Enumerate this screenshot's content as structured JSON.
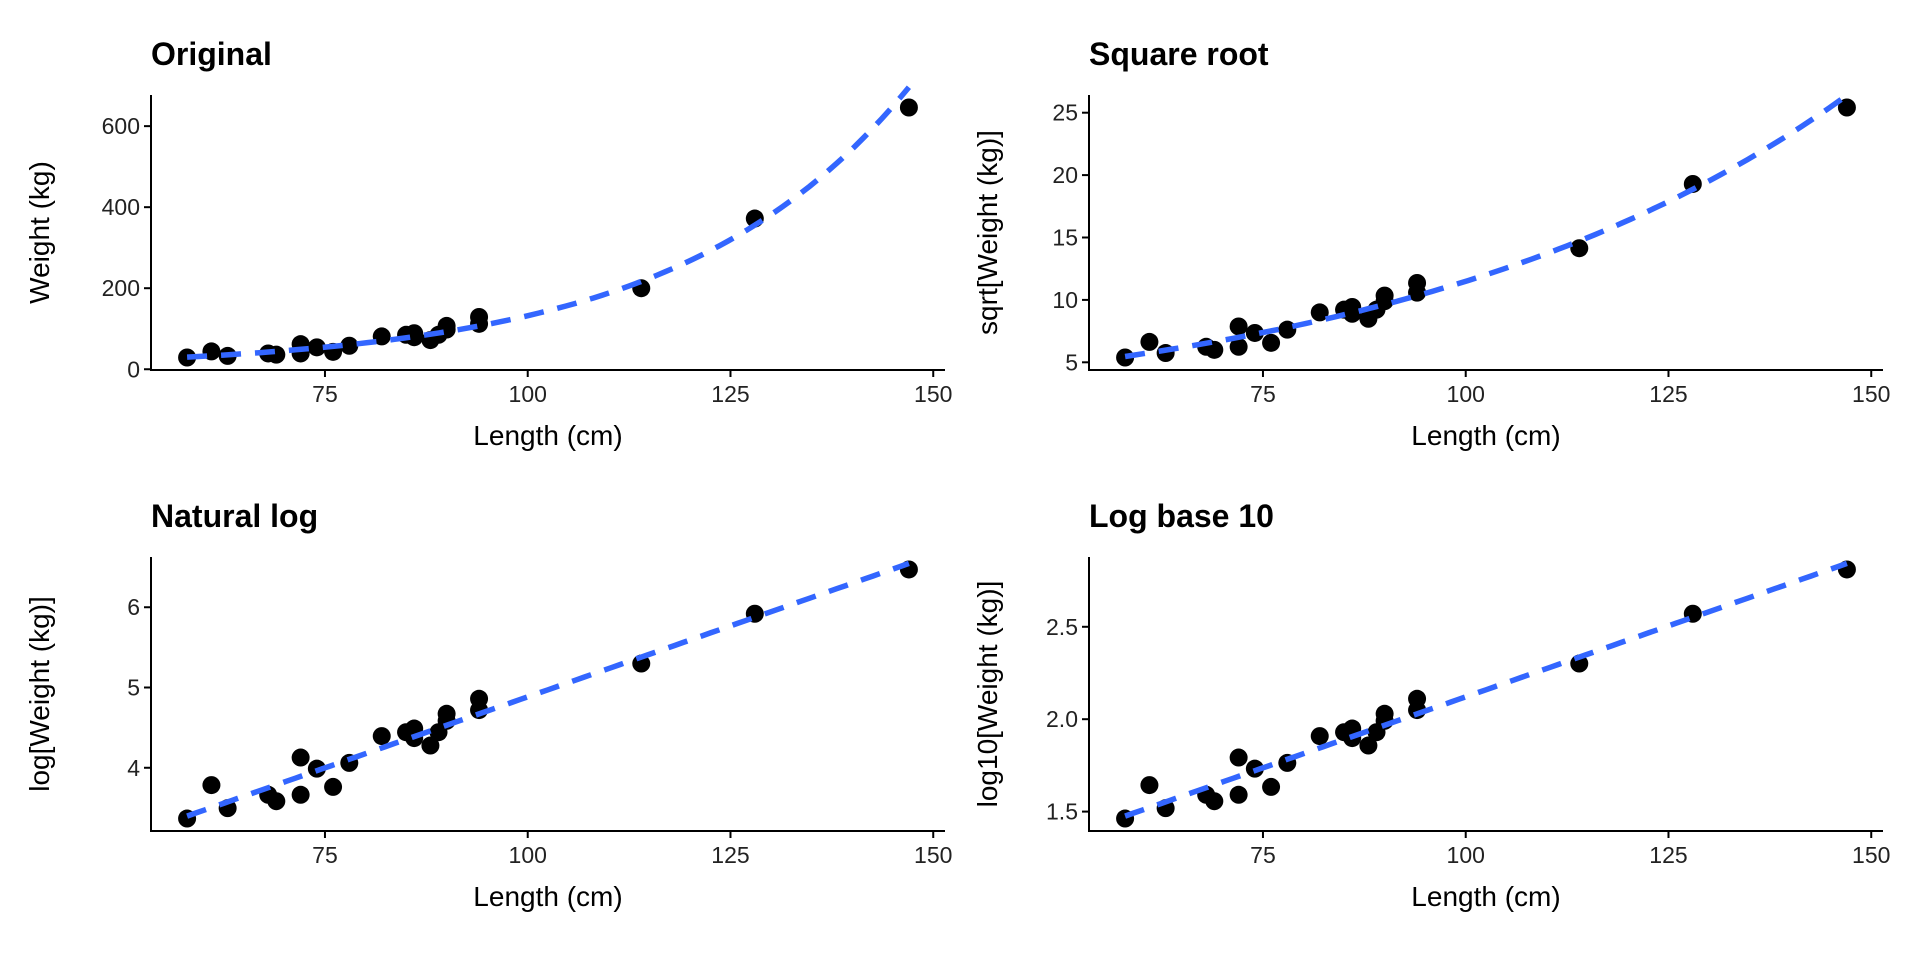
{
  "chart_data": [
    {
      "type": "scatter",
      "title": "Original",
      "xlabel": "Length (cm)",
      "ylabel": "Weight (kg)",
      "transform": "identity",
      "yticks": [
        0,
        200,
        400,
        600
      ],
      "ytick_labels": [
        "0",
        "200",
        "400",
        "600"
      ],
      "xticks": [
        75,
        100,
        125,
        150
      ],
      "xtick_labels": [
        "75",
        "100",
        "125",
        "150"
      ],
      "fit": "dashed smooth trend line"
    },
    {
      "type": "scatter",
      "title": "Square root",
      "xlabel": "Length (cm)",
      "ylabel": "sqrt[Weight (kg)]",
      "transform": "sqrt",
      "yticks": [
        5,
        10,
        15,
        20,
        25
      ],
      "ytick_labels": [
        "5",
        "10",
        "15",
        "20",
        "25"
      ],
      "xticks": [
        75,
        100,
        125,
        150
      ],
      "xtick_labels": [
        "75",
        "100",
        "125",
        "150"
      ],
      "fit": "dashed smooth trend line"
    },
    {
      "type": "scatter",
      "title": "Natural log",
      "xlabel": "Length (cm)",
      "ylabel": "log[Weight (kg)]",
      "transform": "ln",
      "yticks": [
        4,
        5,
        6
      ],
      "ytick_labels": [
        "4",
        "5",
        "6"
      ],
      "xticks": [
        75,
        100,
        125,
        150
      ],
      "xtick_labels": [
        "75",
        "100",
        "125",
        "150"
      ],
      "fit": "dashed smooth trend line"
    },
    {
      "type": "scatter",
      "title": "Log base 10",
      "xlabel": "Length (cm)",
      "ylabel": "log10[Weight (kg)]",
      "transform": "log10",
      "yticks": [
        1.5,
        2.0,
        2.5
      ],
      "ytick_labels": [
        "1.5",
        "2.0",
        "2.5"
      ],
      "xticks": [
        75,
        100,
        125,
        150
      ],
      "xtick_labels": [
        "75",
        "100",
        "125",
        "150"
      ],
      "fit": "dashed smooth trend line"
    }
  ],
  "points": {
    "length_cm": [
      58,
      61,
      63,
      68,
      69,
      72,
      72,
      74,
      76,
      78,
      82,
      85,
      86,
      86,
      88,
      89,
      90,
      90,
      94,
      94,
      114,
      128,
      147
    ],
    "weight_kg": [
      29,
      44,
      33,
      39,
      36,
      62,
      39,
      54,
      43,
      58,
      81,
      85,
      89,
      79,
      72,
      85,
      107,
      98,
      129,
      112,
      200,
      372,
      646
    ]
  },
  "colors": {
    "points": "#000000",
    "fit_line": "#3366FF",
    "axis": "#000000"
  }
}
